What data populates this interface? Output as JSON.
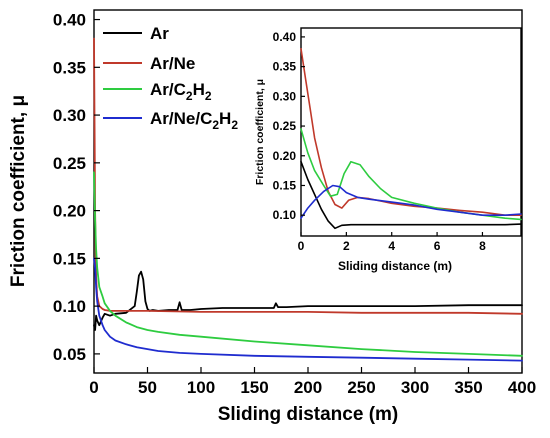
{
  "chart_data": [
    {
      "type": "line",
      "xlabel": "Sliding distance (m)",
      "ylabel": "Friction coefficient, μ",
      "xlim": [
        0,
        400
      ],
      "ylim": [
        0.03,
        0.41
      ],
      "xticks": [
        0,
        50,
        100,
        150,
        200,
        250,
        300,
        350,
        400
      ],
      "yticks": [
        0.05,
        0.1,
        0.15,
        0.2,
        0.25,
        0.3,
        0.35,
        0.4
      ],
      "ytick_labels": [
        "0.05",
        "0.10",
        "0.15",
        "0.20",
        "0.25",
        "0.30",
        "0.35",
        "0.40"
      ],
      "legend_position": "top-center",
      "grid": false,
      "series": [
        {
          "name": "Ar",
          "legend_label": "Ar",
          "color": "#000000",
          "x": [
            0,
            1,
            2,
            3,
            5,
            8,
            10,
            15,
            20,
            30,
            38,
            40,
            42,
            44,
            46,
            48,
            50,
            52,
            55,
            60,
            70,
            78,
            80,
            82,
            90,
            100,
            120,
            150,
            168,
            170,
            172,
            180,
            200,
            250,
            300,
            350,
            400
          ],
          "y": [
            0.08,
            0.075,
            0.09,
            0.085,
            0.08,
            0.088,
            0.092,
            0.09,
            0.092,
            0.093,
            0.1,
            0.115,
            0.132,
            0.136,
            0.128,
            0.105,
            0.097,
            0.095,
            0.096,
            0.095,
            0.096,
            0.096,
            0.104,
            0.096,
            0.096,
            0.097,
            0.098,
            0.098,
            0.098,
            0.103,
            0.099,
            0.099,
            0.1,
            0.1,
            0.1,
            0.101,
            0.101
          ]
        },
        {
          "name": "Ar/Ne",
          "legend_label": "Ar/Ne",
          "color": "#c0392b",
          "x": [
            0,
            1,
            2,
            3,
            5,
            8,
            10,
            15,
            20,
            30,
            50,
            100,
            150,
            200,
            250,
            300,
            350,
            400
          ],
          "y": [
            0.38,
            0.2,
            0.13,
            0.11,
            0.1,
            0.097,
            0.096,
            0.095,
            0.095,
            0.095,
            0.095,
            0.094,
            0.094,
            0.094,
            0.093,
            0.093,
            0.093,
            0.092
          ]
        },
        {
          "name": "Ar/C2H2",
          "legend_label_parts": {
            "before": "Ar/C",
            "sub1": "2",
            "mid": "H",
            "sub2": "2"
          },
          "color": "#2ecc40",
          "x": [
            0,
            1,
            2,
            3,
            5,
            8,
            10,
            15,
            20,
            30,
            40,
            50,
            60,
            80,
            100,
            150,
            200,
            250,
            300,
            350,
            400
          ],
          "y": [
            0.24,
            0.19,
            0.16,
            0.14,
            0.12,
            0.11,
            0.103,
            0.095,
            0.09,
            0.083,
            0.078,
            0.075,
            0.073,
            0.07,
            0.068,
            0.063,
            0.059,
            0.055,
            0.052,
            0.05,
            0.048
          ]
        },
        {
          "name": "Ar/Ne/C2H2",
          "legend_label_parts": {
            "before": "Ar/Ne/C",
            "sub1": "2",
            "mid": "H",
            "sub2": "2"
          },
          "color": "#1f2ccf",
          "x": [
            0,
            1,
            2,
            3,
            5,
            8,
            10,
            15,
            20,
            30,
            40,
            50,
            60,
            80,
            100,
            150,
            200,
            250,
            300,
            350,
            400
          ],
          "y": [
            0.15,
            0.14,
            0.12,
            0.105,
            0.09,
            0.08,
            0.075,
            0.068,
            0.064,
            0.06,
            0.057,
            0.055,
            0.053,
            0.051,
            0.05,
            0.048,
            0.047,
            0.046,
            0.045,
            0.044,
            0.043
          ]
        }
      ]
    },
    {
      "type": "line",
      "xlabel": "Sliding distance (m)",
      "ylabel": "Friction coefficient, μ",
      "xlim": [
        0,
        9.7
      ],
      "ylim": [
        0.065,
        0.415
      ],
      "xticks": [
        0,
        2,
        4,
        6,
        8
      ],
      "yticks": [
        0.1,
        0.15,
        0.2,
        0.25,
        0.3,
        0.35,
        0.4
      ],
      "ytick_labels": [
        "0.10",
        "0.15",
        "0.20",
        "0.25",
        "0.30",
        "0.35",
        "0.40"
      ],
      "legend_position": "none",
      "grid": false,
      "series": [
        {
          "name": "Ar",
          "color": "#000000",
          "x": [
            0,
            0.3,
            0.6,
            0.9,
            1.2,
            1.5,
            1.8,
            2.2,
            3,
            4,
            5,
            6,
            7,
            8,
            9,
            9.7
          ],
          "y": [
            0.19,
            0.16,
            0.135,
            0.11,
            0.09,
            0.078,
            0.083,
            0.084,
            0.084,
            0.084,
            0.084,
            0.084,
            0.084,
            0.084,
            0.084,
            0.085
          ]
        },
        {
          "name": "Ar/Ne",
          "color": "#c0392b",
          "x": [
            0,
            0.2,
            0.4,
            0.6,
            0.9,
            1.2,
            1.5,
            1.8,
            2.1,
            2.5,
            3,
            4,
            5,
            6,
            7,
            8,
            9,
            9.7
          ],
          "y": [
            0.38,
            0.33,
            0.28,
            0.23,
            0.18,
            0.14,
            0.118,
            0.112,
            0.125,
            0.13,
            0.128,
            0.12,
            0.115,
            0.112,
            0.108,
            0.105,
            0.1,
            0.1
          ]
        },
        {
          "name": "Ar/C2H2",
          "color": "#2ecc40",
          "x": [
            0,
            0.3,
            0.6,
            1,
            1.3,
            1.6,
            1.9,
            2.2,
            2.6,
            3,
            3.5,
            4,
            5,
            6,
            7,
            8,
            9,
            9.7
          ],
          "y": [
            0.245,
            0.205,
            0.175,
            0.15,
            0.132,
            0.135,
            0.17,
            0.19,
            0.185,
            0.165,
            0.145,
            0.13,
            0.12,
            0.112,
            0.105,
            0.1,
            0.095,
            0.093
          ]
        },
        {
          "name": "Ar/Ne/C2H2",
          "color": "#1f2ccf",
          "x": [
            0,
            0.3,
            0.6,
            1,
            1.4,
            1.7,
            2,
            2.5,
            3,
            4,
            5,
            6,
            7,
            8,
            9,
            9.7
          ],
          "y": [
            0.095,
            0.112,
            0.125,
            0.14,
            0.15,
            0.148,
            0.138,
            0.13,
            0.127,
            0.122,
            0.117,
            0.11,
            0.105,
            0.1,
            0.1,
            0.102
          ]
        }
      ]
    }
  ]
}
